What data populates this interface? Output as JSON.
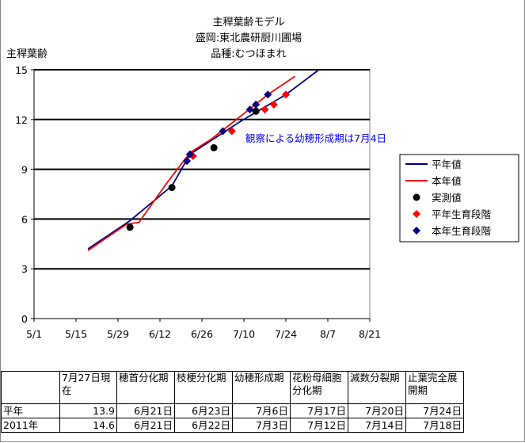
{
  "chart_data": {
    "type": "line",
    "title": [
      "主稈葉齢モデル",
      "盛岡:東北農研厨川圃場",
      "品種:むつほまれ"
    ],
    "ylabel": "主稈葉齢",
    "xlabel": "",
    "xlim": [
      "5/1",
      "8/21"
    ],
    "ylim": [
      0,
      15
    ],
    "xticks": [
      "5/1",
      "5/15",
      "5/29",
      "6/12",
      "6/26",
      "7/10",
      "7/24",
      "8/7",
      "8/21"
    ],
    "yticks": [
      "0",
      "3",
      "6",
      "9",
      "12",
      "15"
    ],
    "grid": "horizontal",
    "legend_position": "right",
    "annotation": "観察による幼穂形成期は7月4日",
    "series": [
      {
        "name": "平年値",
        "kind": "line",
        "color": "#000080",
        "points": [
          [
            "5/19",
            4.2
          ],
          [
            "6/2",
            5.9
          ],
          [
            "6/16",
            8.0
          ],
          [
            "6/22",
            9.9
          ],
          [
            "7/9",
            11.9
          ],
          [
            "7/24",
            13.5
          ],
          [
            "8/4",
            15.0
          ]
        ]
      },
      {
        "name": "本年値",
        "kind": "line",
        "color": "#ff0000",
        "points": [
          [
            "5/19",
            4.1
          ],
          [
            "5/23",
            4.6
          ],
          [
            "6/1",
            5.7
          ],
          [
            "6/5",
            5.8
          ],
          [
            "6/14",
            8.1
          ],
          [
            "6/22",
            10.0
          ],
          [
            "6/29",
            10.8
          ],
          [
            "7/4",
            11.5
          ],
          [
            "7/11",
            12.5
          ],
          [
            "7/18",
            13.5
          ],
          [
            "7/27",
            14.6
          ]
        ]
      },
      {
        "name": "実測値",
        "kind": "marker",
        "marker": "circle",
        "color": "#000000",
        "points": [
          [
            "6/2",
            5.5
          ],
          [
            "6/16",
            7.9
          ],
          [
            "6/30",
            10.3
          ],
          [
            "7/14",
            12.5
          ]
        ]
      },
      {
        "name": "平年生育段階",
        "kind": "marker",
        "marker": "diamond",
        "color": "#ff0000",
        "points": [
          [
            "6/21",
            9.5
          ],
          [
            "6/23",
            9.8
          ],
          [
            "7/6",
            11.3
          ],
          [
            "7/17",
            12.6
          ],
          [
            "7/20",
            12.9
          ],
          [
            "7/24",
            13.5
          ]
        ]
      },
      {
        "name": "本年生育段階",
        "kind": "marker",
        "marker": "diamond",
        "color": "#000080",
        "points": [
          [
            "6/21",
            9.5
          ],
          [
            "6/22",
            9.9
          ],
          [
            "7/3",
            11.3
          ],
          [
            "7/12",
            12.6
          ],
          [
            "7/14",
            12.9
          ],
          [
            "7/18",
            13.5
          ]
        ]
      }
    ]
  },
  "table": {
    "headers": [
      "",
      "7月27日現在",
      "穂首分化期",
      "枝梗分化期",
      "幼穂形成期",
      "花粉母細胞分化期",
      "減数分裂期",
      "止葉完全展開期"
    ],
    "rows": [
      [
        "平年",
        "13.9",
        "6月21日",
        "6月23日",
        "7月6日",
        "7月17日",
        "7月20日",
        "7月24日"
      ],
      [
        "2011年",
        "14.6",
        "6月21日",
        "6月22日",
        "7月3日",
        "7月12日",
        "7月14日",
        "7月18日"
      ]
    ]
  }
}
